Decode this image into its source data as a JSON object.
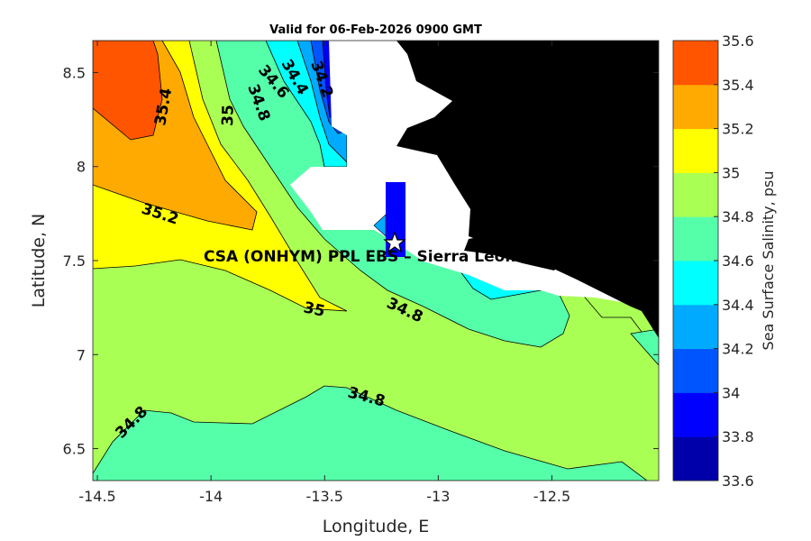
{
  "chart_data": {
    "type": "heatmap",
    "subtype": "filled-contour-map",
    "title": "Valid for 06-Feb-2026 0900 GMT",
    "xlabel": "Longitude, E",
    "ylabel": "Latitude, N",
    "xlim": [
      -14.52,
      -12.03
    ],
    "ylim": [
      6.33,
      8.67
    ],
    "xticks": [
      "-14.5",
      "-14",
      "-13.5",
      "-13",
      "-12.5"
    ],
    "xtick_values": [
      -14.5,
      -14,
      -13.5,
      -13,
      -12.5
    ],
    "yticks": [
      "6.5",
      "7",
      "7.5",
      "8",
      "8.5"
    ],
    "ytick_values": [
      6.5,
      7,
      7.5,
      8,
      8.5
    ],
    "colorbar": {
      "label": "Sea Surface Salinity, psu",
      "levels": [
        33.6,
        33.8,
        34,
        34.2,
        34.4,
        34.6,
        34.8,
        35,
        35.2,
        35.4,
        35.6
      ],
      "tick_labels": [
        "33.6",
        "33.8",
        "34",
        "34.2",
        "34.4",
        "34.6",
        "34.8",
        "35",
        "35.2",
        "35.4",
        "35.6"
      ],
      "colors": [
        "#0000aa",
        "#0000ff",
        "#0055ff",
        "#00aaff",
        "#00ffff",
        "#55ffaa",
        "#aaff55",
        "#ffff00",
        "#ffaa00",
        "#ff5500"
      ]
    },
    "contour_labels": [
      "35.4",
      "35",
      "34.8",
      "34.6",
      "34.4",
      "34.2",
      "35.2",
      "35",
      "34.8",
      "34.8",
      "34.8"
    ],
    "site": {
      "name": "CSA (ONHYM) PPL EBS  – Sierra Leone",
      "lon": -13.22,
      "lat": 7.58,
      "marker": "star-icon"
    },
    "land_color": "#000000",
    "nodata_color": "#ffffff"
  }
}
